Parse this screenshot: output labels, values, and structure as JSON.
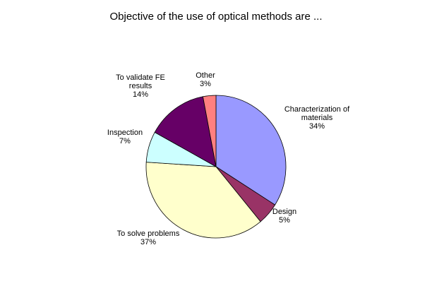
{
  "chart_data": {
    "type": "pie",
    "title": "Objective of the use of optical methods are ...",
    "slices": [
      {
        "label_lines": [
          "Characterization of",
          "materials"
        ],
        "pct_label": "34%",
        "value": 34,
        "color": "#9999ff"
      },
      {
        "label_lines": [
          "Design"
        ],
        "pct_label": "5%",
        "value": 5,
        "color": "#993366"
      },
      {
        "label_lines": [
          "To solve problems"
        ],
        "pct_label": "37%",
        "value": 37,
        "color": "#ffffcc"
      },
      {
        "label_lines": [
          "Inspection"
        ],
        "pct_label": "7%",
        "value": 7,
        "color": "#ccffff"
      },
      {
        "label_lines": [
          "To validate FE",
          "results"
        ],
        "pct_label": "14%",
        "value": 14,
        "color": "#660066"
      },
      {
        "label_lines": [
          "Other"
        ],
        "pct_label": "3%",
        "value": 3,
        "color": "#ff8080"
      }
    ],
    "start_angle_deg": 0,
    "direction": "clockwise",
    "legend": "none"
  }
}
